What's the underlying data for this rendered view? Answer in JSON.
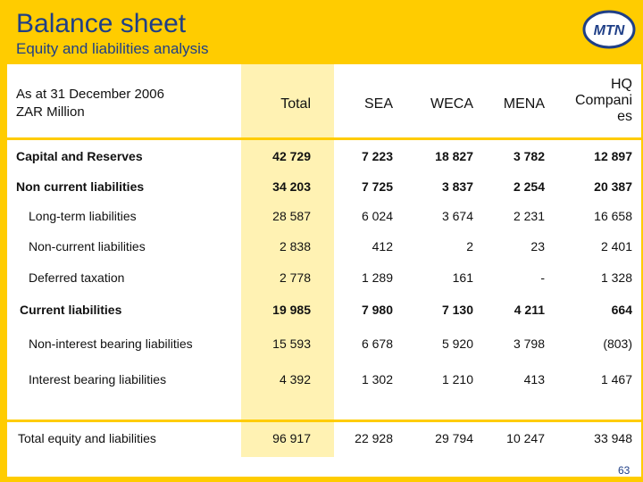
{
  "header": {
    "title": "Balance sheet",
    "subtitle": "Equity and liabilities analysis",
    "logo_text": "MTN"
  },
  "table": {
    "caption_line1": "As at 31 December 2006",
    "caption_line2": "ZAR Million",
    "columns": [
      "Total",
      "SEA",
      "WECA",
      "MENA",
      "HQ Companies"
    ],
    "hq_line1": "HQ",
    "hq_line2": "Compani",
    "hq_line3": "es",
    "rows": [
      {
        "label": "Capital and Reserves",
        "values": [
          "42 729",
          "7 223",
          "18 827",
          "3 782",
          "12 897"
        ],
        "bold": true
      },
      {
        "label": "Non current liabilities",
        "values": [
          "34 203",
          "7 725",
          "3 837",
          "2 254",
          "20 387"
        ],
        "bold": true
      },
      {
        "label": "Long-term liabilities",
        "values": [
          "28 587",
          "6 024",
          "3 674",
          "2 231",
          "16 658"
        ],
        "bold": false
      },
      {
        "label": "Non-current liabilities",
        "values": [
          "2 838",
          "412",
          "2",
          "23",
          "2 401"
        ],
        "bold": false
      },
      {
        "label": "Deferred taxation",
        "values": [
          "2 778",
          "1 289",
          "161",
          "-",
          "1 328"
        ],
        "bold": false
      },
      {
        "label": "Current liabilities",
        "values": [
          "19 985",
          "7 980",
          "7 130",
          "4 211",
          "664"
        ],
        "bold": true
      },
      {
        "label": "Non-interest bearing liabilities",
        "values": [
          "15 593",
          "6 678",
          "5 920",
          "3 798",
          "(803)"
        ],
        "bold": false
      },
      {
        "label": "Interest bearing liabilities",
        "values": [
          "4 392",
          "1 302",
          "1 210",
          "413",
          "1 467"
        ],
        "bold": false
      },
      {
        "label": "Total equity and liabilities",
        "values": [
          "96 917",
          "22 928",
          "29 794",
          "10 247",
          "33 948"
        ],
        "bold": false
      }
    ]
  },
  "footer": {
    "page_number": "63"
  },
  "colors": {
    "brand_yellow": "#ffcc00",
    "title_blue": "#1f3f87",
    "highlight_column": "#fff2b3"
  }
}
